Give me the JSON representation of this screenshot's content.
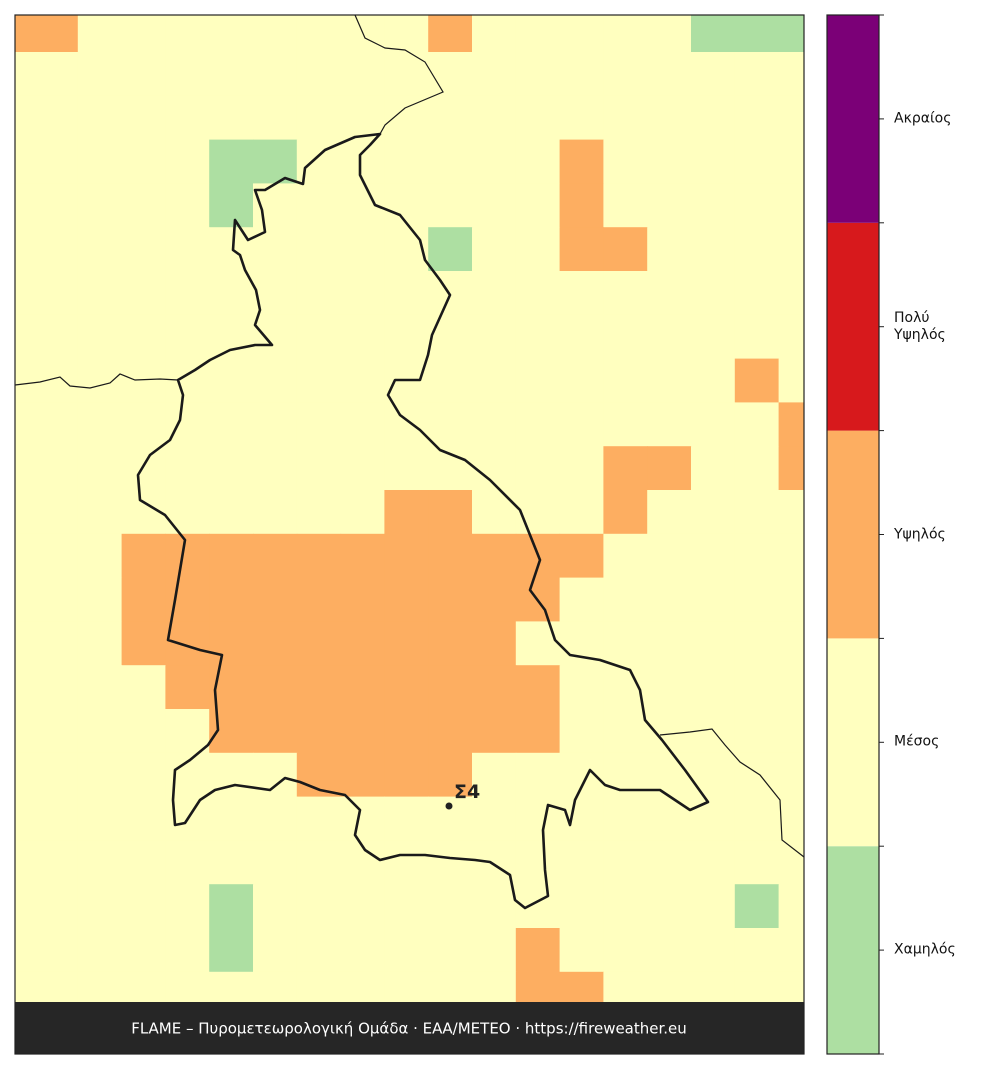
{
  "map": {
    "grid": [
      [
        2,
        2,
        1,
        1,
        1,
        1,
        1,
        1,
        1,
        1,
        2,
        1,
        1,
        1,
        1,
        1,
        0,
        0,
        0
      ],
      [
        1,
        1,
        1,
        1,
        1,
        1,
        1,
        1,
        1,
        1,
        1,
        1,
        1,
        1,
        1,
        1,
        1,
        1,
        1
      ],
      [
        1,
        1,
        1,
        1,
        1,
        1,
        1,
        1,
        1,
        1,
        1,
        1,
        1,
        1,
        1,
        1,
        1,
        1,
        1
      ],
      [
        1,
        1,
        1,
        1,
        1,
        0,
        0,
        1,
        1,
        1,
        1,
        1,
        1,
        2,
        1,
        1,
        1,
        1,
        1
      ],
      [
        1,
        1,
        1,
        1,
        1,
        0,
        1,
        1,
        1,
        1,
        1,
        1,
        1,
        2,
        1,
        1,
        1,
        1,
        1
      ],
      [
        1,
        1,
        1,
        1,
        1,
        1,
        1,
        1,
        1,
        1,
        0,
        1,
        1,
        2,
        2,
        1,
        1,
        1,
        1
      ],
      [
        1,
        1,
        1,
        1,
        1,
        1,
        1,
        1,
        1,
        1,
        1,
        1,
        1,
        1,
        1,
        1,
        1,
        1,
        1
      ],
      [
        1,
        1,
        1,
        1,
        1,
        1,
        1,
        1,
        1,
        1,
        1,
        1,
        1,
        1,
        1,
        1,
        1,
        1,
        1
      ],
      [
        1,
        1,
        1,
        1,
        1,
        1,
        1,
        1,
        1,
        1,
        1,
        1,
        1,
        1,
        1,
        1,
        1,
        2,
        1
      ],
      [
        1,
        1,
        1,
        1,
        1,
        1,
        1,
        1,
        1,
        1,
        1,
        1,
        1,
        1,
        1,
        1,
        1,
        1,
        2
      ],
      [
        1,
        1,
        1,
        1,
        1,
        1,
        1,
        1,
        1,
        1,
        1,
        1,
        1,
        1,
        2,
        2,
        1,
        1,
        2
      ],
      [
        1,
        1,
        1,
        1,
        1,
        1,
        1,
        1,
        1,
        2,
        2,
        1,
        1,
        1,
        2,
        1,
        1,
        1,
        1
      ],
      [
        1,
        1,
        1,
        2,
        2,
        2,
        2,
        2,
        2,
        2,
        2,
        2,
        2,
        2,
        1,
        1,
        1,
        1,
        1
      ],
      [
        1,
        1,
        1,
        2,
        2,
        2,
        2,
        2,
        2,
        2,
        2,
        2,
        2,
        1,
        1,
        1,
        1,
        1,
        1
      ],
      [
        1,
        1,
        1,
        2,
        2,
        2,
        2,
        2,
        2,
        2,
        2,
        2,
        1,
        1,
        1,
        1,
        1,
        1,
        1
      ],
      [
        1,
        1,
        1,
        1,
        2,
        2,
        2,
        2,
        2,
        2,
        2,
        2,
        2,
        1,
        1,
        1,
        1,
        1,
        1
      ],
      [
        1,
        1,
        1,
        1,
        1,
        2,
        2,
        2,
        2,
        2,
        2,
        2,
        2,
        1,
        1,
        1,
        1,
        1,
        1
      ],
      [
        1,
        1,
        1,
        1,
        1,
        1,
        1,
        2,
        2,
        2,
        2,
        1,
        1,
        1,
        1,
        1,
        1,
        1,
        1
      ],
      [
        1,
        1,
        1,
        1,
        1,
        1,
        1,
        1,
        1,
        1,
        1,
        1,
        1,
        1,
        1,
        1,
        1,
        1,
        1
      ],
      [
        1,
        1,
        1,
        1,
        1,
        1,
        1,
        1,
        1,
        1,
        1,
        1,
        1,
        1,
        1,
        1,
        1,
        1,
        1
      ],
      [
        1,
        1,
        1,
        1,
        1,
        0,
        1,
        1,
        1,
        1,
        1,
        1,
        1,
        1,
        1,
        1,
        1,
        0,
        1
      ],
      [
        1,
        1,
        1,
        1,
        1,
        0,
        1,
        1,
        1,
        1,
        1,
        1,
        2,
        1,
        1,
        1,
        1,
        1,
        1
      ],
      [
        1,
        1,
        1,
        1,
        1,
        1,
        1,
        1,
        1,
        1,
        1,
        1,
        2,
        2,
        1,
        1,
        1,
        1,
        1
      ]
    ]
  },
  "legend": {
    "levels": [
      {
        "label": "Χαμηλός",
        "color": "#addfa2"
      },
      {
        "label": "Μέσος",
        "color": "#ffffbf"
      },
      {
        "label": "Υψηλός",
        "color": "#fdae61"
      },
      {
        "label": "Πολύ Υψηλός",
        "color": "#d7191c"
      },
      {
        "label": "Ακραίος",
        "color": "#7b0077"
      }
    ]
  },
  "station": {
    "label": "Σ4"
  },
  "footer": "FLAME – Πυρομετεωρολογική Ομάδα · ΕΑΑ/METEO · https://fireweather.eu"
}
